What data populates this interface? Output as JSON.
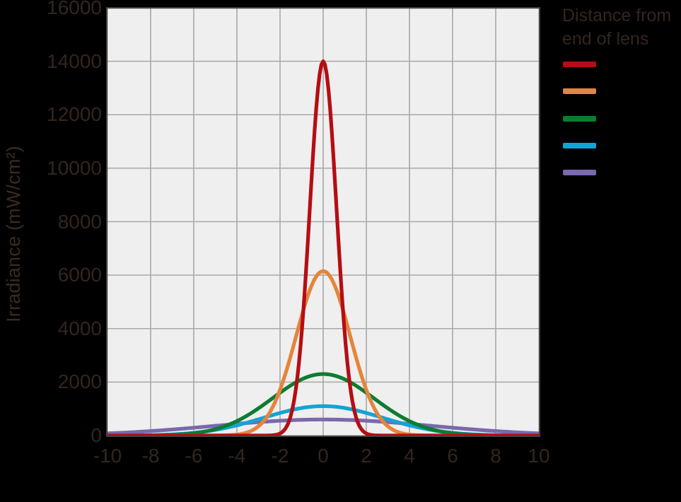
{
  "page": {
    "background": "#000000"
  },
  "colors": {
    "plot_background": "#efefef",
    "gridline": "#a8a8a8",
    "plot_border": "#45403c",
    "text": "#33251f"
  },
  "legend": {
    "title_line1": "Distance from",
    "title_line2": "end of lens",
    "items": [
      {
        "name": "red",
        "color": "#b50d13"
      },
      {
        "name": "orange",
        "color": "#e6843b"
      },
      {
        "name": "green",
        "color": "#0d7c31"
      },
      {
        "name": "cyan",
        "color": "#14a3d5"
      },
      {
        "name": "purple",
        "color": "#7a68ad"
      }
    ]
  },
  "chart_data": {
    "type": "line",
    "title": "",
    "xlabel": "",
    "ylabel": "Irradiance (mW/cm²)",
    "xlim": [
      -10,
      10
    ],
    "ylim": [
      0,
      16000
    ],
    "x_ticks": [
      -10,
      -8,
      -6,
      -4,
      -2,
      0,
      2,
      4,
      6,
      8,
      10
    ],
    "y_ticks": [
      0,
      2000,
      4000,
      6000,
      8000,
      10000,
      12000,
      14000,
      16000
    ],
    "grid": true,
    "legend_position": "right-outside",
    "curve_shape": "gaussian",
    "series": [
      {
        "name": "red",
        "color": "#b50d13",
        "peak": 14000,
        "sigma": 0.62,
        "center": 0
      },
      {
        "name": "orange",
        "color": "#e6843b",
        "peak": 6150,
        "sigma": 1.25,
        "center": 0
      },
      {
        "name": "green",
        "color": "#0d7c31",
        "peak": 2300,
        "sigma": 2.35,
        "center": 0
      },
      {
        "name": "cyan",
        "color": "#14a3d5",
        "peak": 1100,
        "sigma": 2.75,
        "center": 0
      },
      {
        "name": "purple",
        "color": "#7a68ad",
        "peak": 600,
        "sigma": 5.0,
        "center": 0
      }
    ]
  }
}
